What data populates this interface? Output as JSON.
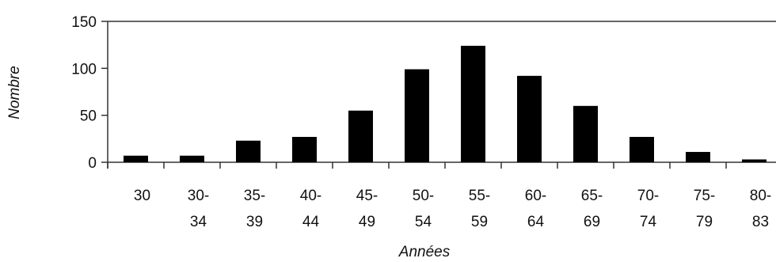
{
  "chart_data": {
    "type": "bar",
    "title": "",
    "xlabel": "Années",
    "ylabel": "Nombre",
    "categories": [
      {
        "line1": "30",
        "line2": ""
      },
      {
        "line1": "30-",
        "line2": "34"
      },
      {
        "line1": "35-",
        "line2": "39"
      },
      {
        "line1": "40-",
        "line2": "44"
      },
      {
        "line1": "45-",
        "line2": "49"
      },
      {
        "line1": "50-",
        "line2": "54"
      },
      {
        "line1": "55-",
        "line2": "59"
      },
      {
        "line1": "60-",
        "line2": "64"
      },
      {
        "line1": "65-",
        "line2": "69"
      },
      {
        "line1": "70-",
        "line2": "74"
      },
      {
        "line1": "75-",
        "line2": "79"
      },
      {
        "line1": "80-",
        "line2": "83"
      }
    ],
    "values": [
      7,
      7,
      23,
      27,
      55,
      99,
      124,
      92,
      60,
      27,
      11,
      3
    ],
    "ylim": [
      0,
      150
    ],
    "yticks": [
      "0",
      "50",
      "100",
      "150"
    ],
    "grid": false,
    "legend": "none",
    "bar_color": "#000000",
    "axis_color": "#333333"
  }
}
